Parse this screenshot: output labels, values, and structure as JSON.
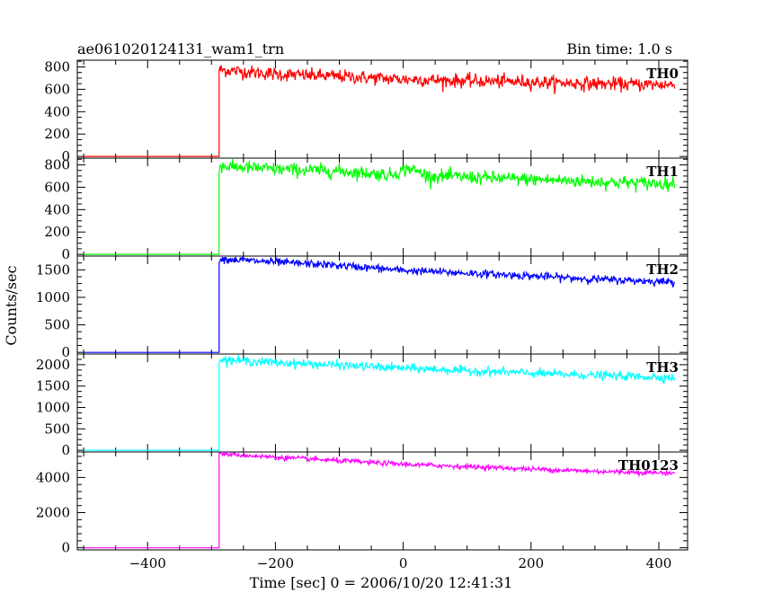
{
  "chart_data": {
    "type": "line",
    "title_left": "ae061020124131_wam1_trn",
    "title_right": "Bin time: 1.0 s",
    "xlabel": "Time [sec] 0 = 2006/10/20 12:41:31",
    "ylabel": "Counts/sec",
    "xlim": [
      -510,
      445
    ],
    "x_ticks": [
      -400,
      -200,
      0,
      200,
      400
    ],
    "x_tick_labels": [
      "−400",
      "−200",
      "0",
      "200",
      "400"
    ],
    "bin_time_s": 1.0,
    "onset_time": -288,
    "data_start": -500,
    "data_end": 425,
    "panels": [
      {
        "label": "TH0",
        "color": "#ff0000",
        "ylim": [
          -15,
          860
        ],
        "y_ticks": [
          0,
          200,
          400,
          600,
          800
        ],
        "pre_level": 0,
        "keypoints": [
          [
            -288,
            775
          ],
          [
            -200,
            735
          ],
          [
            -100,
            715
          ],
          [
            0,
            690
          ],
          [
            100,
            675
          ],
          [
            200,
            665
          ],
          [
            300,
            650
          ],
          [
            425,
            640
          ]
        ],
        "noise": 30
      },
      {
        "label": "TH1",
        "color": "#00ff00",
        "ylim": [
          -15,
          860
        ],
        "y_ticks": [
          0,
          200,
          400,
          600,
          800
        ],
        "pre_level": 0,
        "keypoints": [
          [
            -288,
            790
          ],
          [
            -200,
            760
          ],
          [
            -100,
            745
          ],
          [
            -20,
            710
          ],
          [
            10,
            770
          ],
          [
            40,
            700
          ],
          [
            100,
            690
          ],
          [
            200,
            670
          ],
          [
            300,
            650
          ],
          [
            425,
            630
          ]
        ],
        "noise": 30
      },
      {
        "label": "TH2",
        "color": "#0000ff",
        "ylim": [
          -30,
          1750
        ],
        "y_ticks": [
          0,
          500,
          1000,
          1500
        ],
        "pre_level": 0,
        "keypoints": [
          [
            -288,
            1700
          ],
          [
            -200,
            1640
          ],
          [
            -100,
            1580
          ],
          [
            0,
            1490
          ],
          [
            100,
            1440
          ],
          [
            200,
            1390
          ],
          [
            300,
            1330
          ],
          [
            425,
            1280
          ]
        ],
        "noise": 35
      },
      {
        "label": "TH3",
        "color": "#00ffff",
        "ylim": [
          -40,
          2250
        ],
        "y_ticks": [
          0,
          500,
          1000,
          1500,
          2000
        ],
        "pre_level": 0,
        "keypoints": [
          [
            -288,
            2120
          ],
          [
            -200,
            2050
          ],
          [
            -100,
            1990
          ],
          [
            0,
            1920
          ],
          [
            100,
            1860
          ],
          [
            200,
            1800
          ],
          [
            300,
            1750
          ],
          [
            425,
            1700
          ]
        ],
        "noise": 50
      },
      {
        "label": "TH0123",
        "color": "#ff00ff",
        "ylim": [
          -120,
          5450
        ],
        "y_ticks": [
          0,
          2000,
          4000
        ],
        "pre_level": 0,
        "keypoints": [
          [
            -288,
            5350
          ],
          [
            -200,
            5150
          ],
          [
            -100,
            4950
          ],
          [
            0,
            4750
          ],
          [
            100,
            4620
          ],
          [
            200,
            4480
          ],
          [
            300,
            4350
          ],
          [
            425,
            4250
          ]
        ],
        "noise": 70
      }
    ]
  }
}
